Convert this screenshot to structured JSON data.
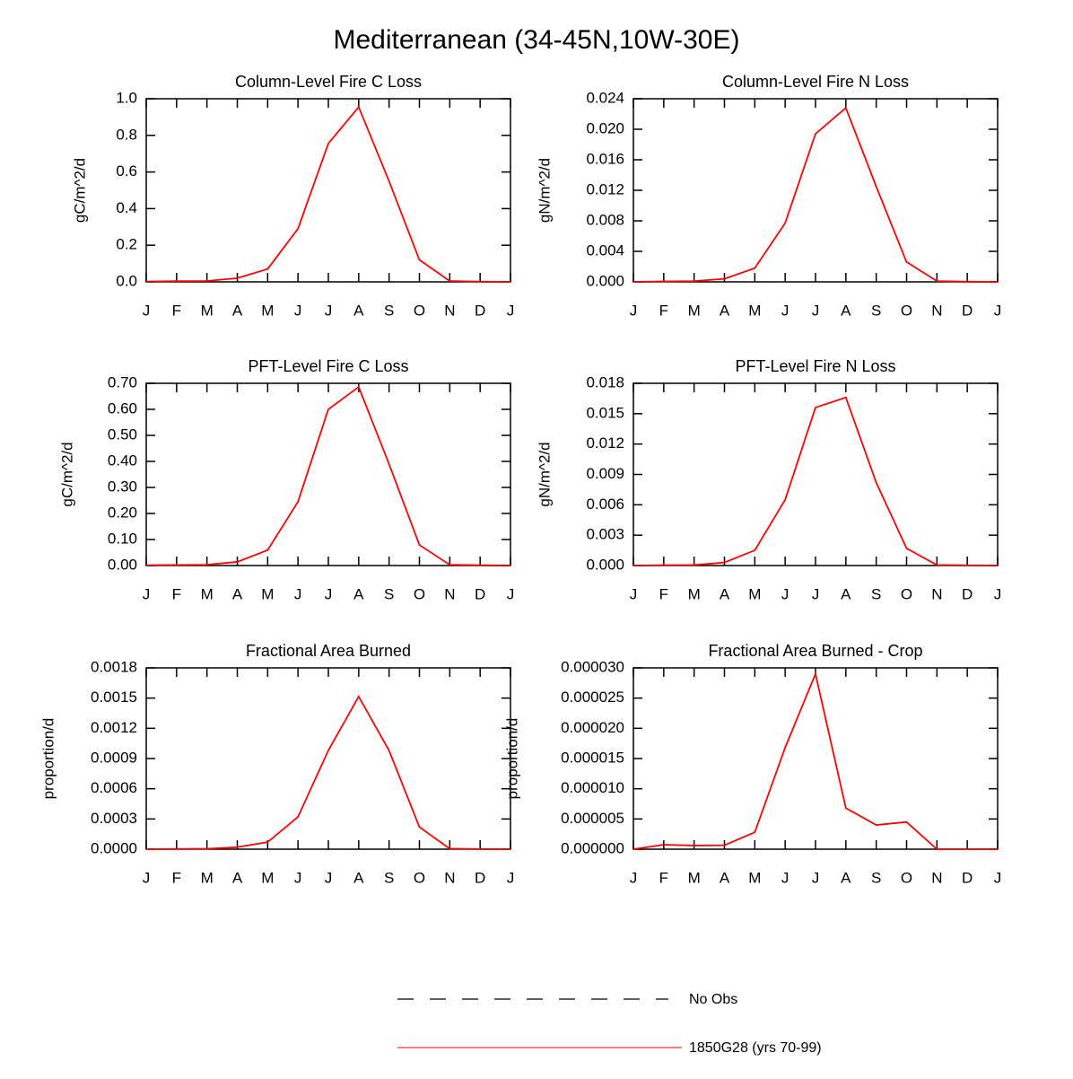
{
  "title": "Mediterranean (34-45N,10W-30E)",
  "legend": [
    {
      "name": "No Obs",
      "color": "#000000",
      "dashed": true
    },
    {
      "name": "1850G28 (yrs 70-99)",
      "color": "#ff0000",
      "dashed": false
    }
  ],
  "chart_data": [
    {
      "type": "line",
      "title": "Column-Level Fire C Loss",
      "y_label": "gC/m^2/d",
      "categories": [
        "J",
        "F",
        "M",
        "A",
        "M",
        "J",
        "J",
        "A",
        "S",
        "O",
        "N",
        "D",
        "J"
      ],
      "series": [
        {
          "color": "#ff0000",
          "values": [
            0.002,
            0.004,
            0.005,
            0.02,
            0.07,
            0.29,
            0.755,
            0.955,
            0.55,
            0.12,
            0.005,
            0.001,
            0
          ]
        }
      ],
      "ylim": [
        0,
        1.0
      ],
      "yticks": [
        {
          "value": 0,
          "label": "0.0"
        },
        0.2,
        0.4,
        0.6,
        0.8,
        {
          "value": 1.0,
          "label": "1.0"
        }
      ]
    },
    {
      "type": "line",
      "title": "Column-Level Fire N Loss",
      "y_label": "gN/m^2/d",
      "categories": [
        "J",
        "F",
        "M",
        "A",
        "M",
        "J",
        "J",
        "A",
        "S",
        "O",
        "N",
        "D",
        "J"
      ],
      "series": [
        {
          "color": "#ff0000",
          "values": [
            0,
            5e-05,
            0.0001,
            0.0004,
            0.0018,
            0.0077,
            0.0194,
            0.0228,
            0.0125,
            0.0026,
            0.0001,
            2e-05,
            0
          ]
        }
      ],
      "ylim": [
        0,
        0.024
      ],
      "yticks": [
        {
          "value": 0,
          "label": "0.000"
        },
        0.004,
        0.008,
        0.012,
        0.016,
        {
          "value": 0.02,
          "label": "0.020"
        },
        0.024
      ]
    },
    {
      "type": "line",
      "title": "PFT-Level Fire C Loss",
      "y_label": "gC/m^2/d",
      "categories": [
        "J",
        "F",
        "M",
        "A",
        "M",
        "J",
        "J",
        "A",
        "S",
        "O",
        "N",
        "D",
        "J"
      ],
      "series": [
        {
          "color": "#ff0000",
          "values": [
            0.001,
            0.002,
            0.003,
            0.014,
            0.059,
            0.245,
            0.6,
            0.686,
            0.39,
            0.079,
            0.003,
            0.001,
            0
          ]
        }
      ],
      "ylim": [
        0,
        0.7
      ],
      "yticks": [
        {
          "value": 0,
          "label": "0.00"
        },
        {
          "value": 0.1,
          "label": "0.10"
        },
        {
          "value": 0.2,
          "label": "0.20"
        },
        {
          "value": 0.3,
          "label": "0.30"
        },
        {
          "value": 0.4,
          "label": "0.40"
        },
        {
          "value": 0.5,
          "label": "0.50"
        },
        {
          "value": 0.6,
          "label": "0.60"
        },
        {
          "value": 0.7,
          "label": "0.70"
        }
      ]
    },
    {
      "type": "line",
      "title": "PFT-Level Fire N Loss",
      "y_label": "gN/m^2/d",
      "categories": [
        "J",
        "F",
        "M",
        "A",
        "M",
        "J",
        "J",
        "A",
        "S",
        "O",
        "N",
        "D",
        "J"
      ],
      "series": [
        {
          "color": "#ff0000",
          "values": [
            0,
            3e-05,
            5e-05,
            0.0003,
            0.0015,
            0.0065,
            0.0156,
            0.0166,
            0.0082,
            0.0017,
            5e-05,
            2e-05,
            0
          ]
        }
      ],
      "ylim": [
        0,
        0.018
      ],
      "yticks": [
        {
          "value": 0,
          "label": "0.000"
        },
        0.003,
        0.006,
        0.009,
        0.012,
        0.015,
        0.018
      ]
    },
    {
      "type": "line",
      "title": "Fractional Area Burned",
      "y_label": "proportion/d",
      "categories": [
        "J",
        "F",
        "M",
        "A",
        "M",
        "J",
        "J",
        "A",
        "S",
        "O",
        "N",
        "D",
        "J"
      ],
      "series": [
        {
          "color": "#ff0000",
          "values": [
            0,
            2e-06,
            4e-06,
            2e-05,
            7e-05,
            0.00032,
            0.00098,
            0.001515,
            0.00098,
            0.00022,
            5e-06,
            1e-06,
            0
          ]
        }
      ],
      "ylim": [
        0,
        0.0018
      ],
      "yticks": [
        {
          "value": 0,
          "label": "0.0000"
        },
        0.0003,
        0.0006,
        0.0009,
        0.0012,
        0.0015,
        0.0018
      ]
    },
    {
      "type": "line",
      "title": "Fractional Area Burned - Crop",
      "y_label": "proportion/d",
      "categories": [
        "J",
        "F",
        "M",
        "A",
        "M",
        "J",
        "J",
        "A",
        "S",
        "O",
        "N",
        "D",
        "J"
      ],
      "series": [
        {
          "color": "#ff0000",
          "values": [
            0,
            7.4e-07,
            6e-07,
            6.5e-07,
            2.8e-06,
            1.68e-05,
            2.9e-05,
            6.8e-06,
            4e-06,
            4.5e-06,
            0,
            0,
            0
          ]
        }
      ],
      "ylim": [
        0,
        3e-05
      ],
      "yticks": [
        {
          "value": 0,
          "label": "0.000000"
        },
        5e-06,
        {
          "value": 1e-05,
          "label": "0.000010"
        },
        1.5e-05,
        {
          "value": 2e-05,
          "label": "0.000020"
        },
        2.5e-05,
        {
          "value": 3e-05,
          "label": "0.000030"
        }
      ]
    }
  ]
}
